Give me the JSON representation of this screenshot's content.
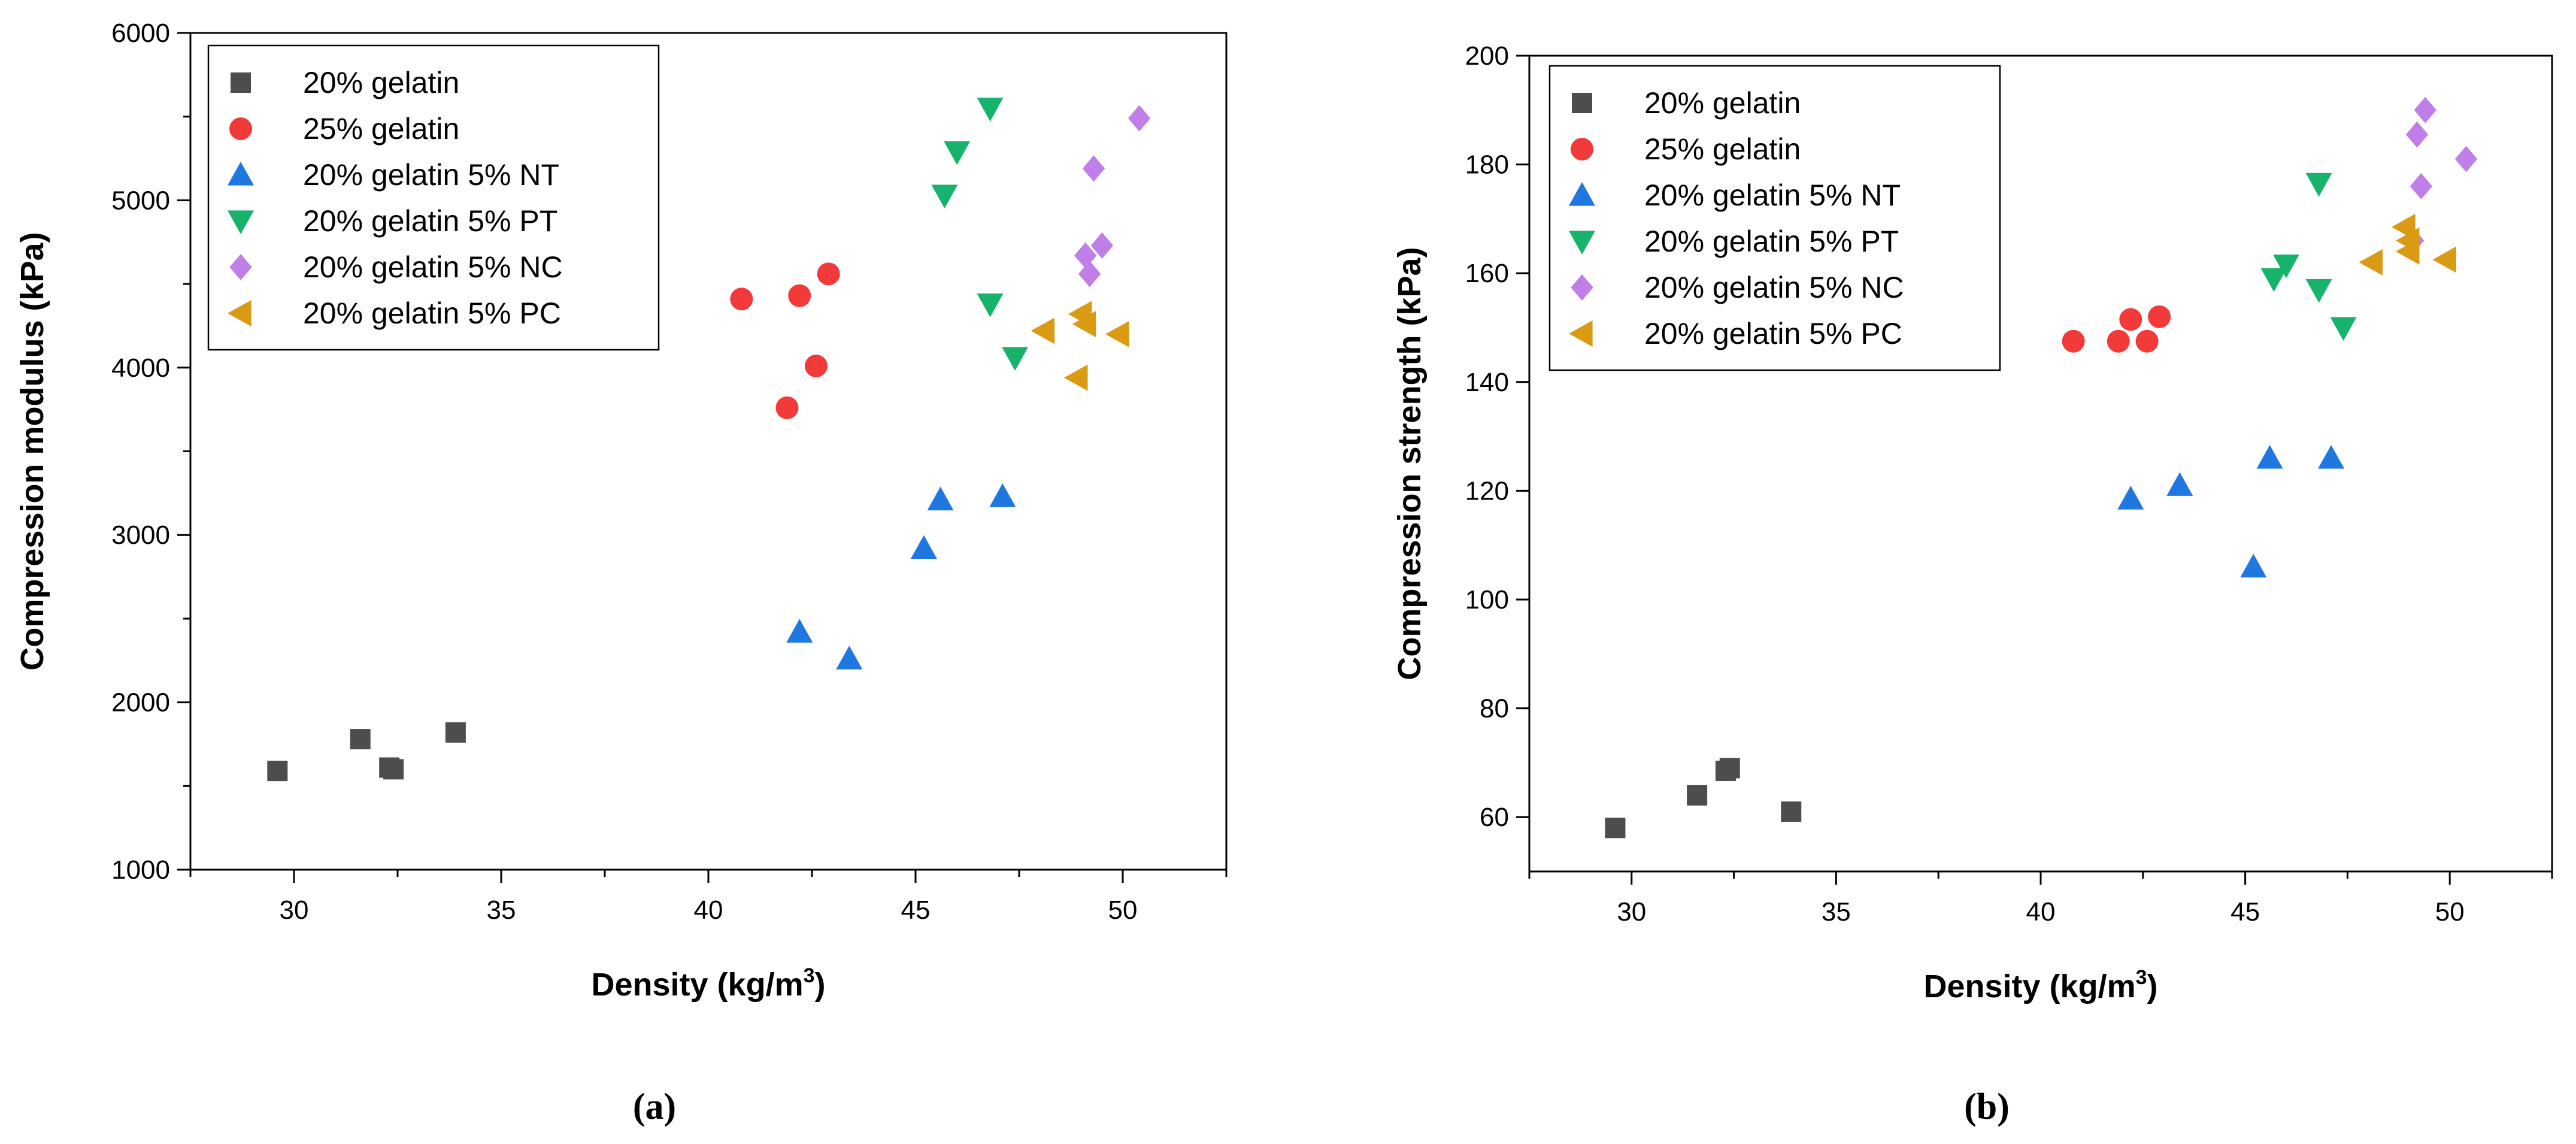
{
  "series_styles": [
    {
      "name": "20% gelatin",
      "marker": "square",
      "color": "#4d4d4d"
    },
    {
      "name": "25% gelatin",
      "marker": "circle",
      "color": "#f23a3a"
    },
    {
      "name": "20% gelatin 5% NT",
      "marker": "triangle-up",
      "color": "#1f77e0"
    },
    {
      "name": "20% gelatin 5% PT",
      "marker": "triangle-down",
      "color": "#17b36b"
    },
    {
      "name": "20% gelatin 5% NC",
      "marker": "diamond",
      "color": "#c07fe8"
    },
    {
      "name": "20% gelatin 5% PC",
      "marker": "triangle-left",
      "color": "#d99a14"
    }
  ],
  "chart_data": [
    {
      "type": "scatter",
      "panel_label": "(a)",
      "xlabel": "Density (kg/m",
      "xlabel_sup": "3",
      "xlabel_end": ")",
      "ylabel": "Compression modulus (kPa)",
      "xlim": [
        27.5,
        52.5
      ],
      "ylim": [
        1000,
        6000
      ],
      "xticks": [
        30,
        35,
        40,
        45,
        50
      ],
      "yticks": [
        1000,
        2000,
        3000,
        4000,
        5000,
        6000
      ],
      "legend_position": "top-left",
      "series": [
        {
          "name": "20% gelatin",
          "x": [
            29.6,
            31.6,
            32.3,
            32.4,
            33.9
          ],
          "y": [
            1590,
            1780,
            1610,
            1600,
            1820
          ]
        },
        {
          "name": "25% gelatin",
          "x": [
            40.8,
            41.9,
            42.2,
            42.6,
            42.9
          ],
          "y": [
            4410,
            3760,
            4430,
            4010,
            4560
          ]
        },
        {
          "name": "20% gelatin 5% NT",
          "x": [
            42.2,
            43.4,
            45.2,
            45.6,
            47.1
          ],
          "y": [
            2420,
            2260,
            2920,
            3210,
            3230
          ]
        },
        {
          "name": "20% gelatin 5% PT",
          "x": [
            45.7,
            46.0,
            46.8,
            46.8,
            47.4
          ],
          "y": [
            5030,
            5290,
            5550,
            4380,
            4060
          ]
        },
        {
          "name": "20% gelatin 5% NC",
          "x": [
            49.1,
            49.2,
            49.3,
            49.5,
            50.4
          ],
          "y": [
            4670,
            4560,
            5190,
            4730,
            5490
          ]
        },
        {
          "name": "20% gelatin 5% PC",
          "x": [
            48.1,
            48.9,
            49.0,
            49.1,
            49.9
          ],
          "y": [
            4220,
            3940,
            4320,
            4260,
            4200
          ]
        }
      ]
    },
    {
      "type": "scatter",
      "panel_label": "(b)",
      "xlabel": "Density (kg/m",
      "xlabel_sup": "3",
      "xlabel_end": ")",
      "ylabel": "Compression strength (kPa)",
      "xlim": [
        27.5,
        52.5
      ],
      "ylim": [
        50,
        200
      ],
      "xticks": [
        30,
        35,
        40,
        45,
        50
      ],
      "yticks": [
        60,
        80,
        100,
        120,
        140,
        160,
        180,
        200
      ],
      "legend_position": "top-left",
      "series": [
        {
          "name": "20% gelatin",
          "x": [
            29.6,
            31.6,
            32.3,
            32.4,
            33.9
          ],
          "y": [
            58,
            64,
            68.5,
            69,
            61
          ]
        },
        {
          "name": "25% gelatin",
          "x": [
            40.8,
            41.9,
            42.2,
            42.6,
            42.9
          ],
          "y": [
            147.5,
            147.5,
            151.5,
            147.5,
            152
          ]
        },
        {
          "name": "20% gelatin 5% NT",
          "x": [
            42.2,
            43.4,
            45.2,
            45.6,
            47.1
          ],
          "y": [
            118.5,
            121,
            106,
            126,
            126
          ]
        },
        {
          "name": "20% gelatin 5% PT",
          "x": [
            45.7,
            46.0,
            46.8,
            46.8,
            47.4
          ],
          "y": [
            159,
            161.5,
            176.5,
            157,
            150
          ]
        },
        {
          "name": "20% gelatin 5% NC",
          "x": [
            49.1,
            49.2,
            49.3,
            49.4,
            50.4
          ],
          "y": [
            166,
            185.5,
            176,
            190,
            181
          ]
        },
        {
          "name": "20% gelatin 5% PC",
          "x": [
            48.1,
            48.9,
            49.0,
            49.0,
            49.9
          ],
          "y": [
            162,
            168.5,
            164,
            166,
            162.5
          ]
        }
      ]
    }
  ]
}
